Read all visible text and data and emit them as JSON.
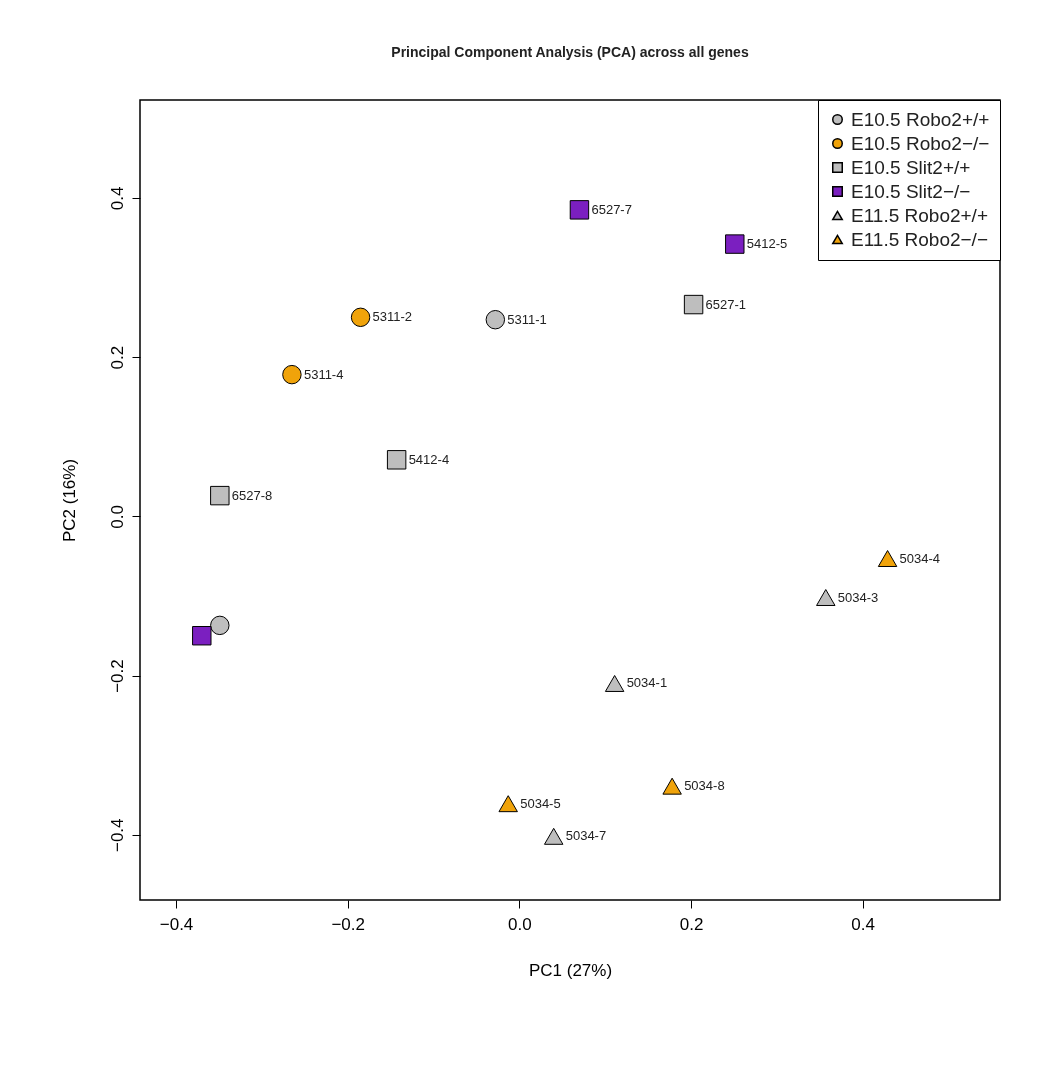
{
  "chart_data": {
    "type": "scatter",
    "title": "Principal Component Analysis (PCA) across all genes",
    "xlabel": "PC1 (27%)",
    "ylabel": "PC2 (16%)",
    "xlim": [
      -0.442,
      0.56
    ],
    "xticks": [
      {
        "value": -0.4,
        "label": "−0.4"
      },
      {
        "value": -0.2,
        "label": "−0.2"
      },
      {
        "value": 0,
        "label": "0.0"
      },
      {
        "value": 0.2,
        "label": "0.2"
      },
      {
        "value": 0.4,
        "label": "0.4"
      }
    ],
    "ylim": [
      -0.482,
      0.523
    ],
    "yticks": [
      {
        "value": -0.4,
        "label": "−0.4"
      },
      {
        "value": -0.2,
        "label": "−0.2"
      },
      {
        "value": 0,
        "label": "0.0"
      },
      {
        "value": 0.2,
        "label": "0.2"
      },
      {
        "value": 0.4,
        "label": "0.4"
      }
    ],
    "grid": false,
    "legend": "top right",
    "series": [
      {
        "name": "E10.5 Robo2+/+",
        "color": "#bebebe",
        "marker": "circle",
        "x": [
          -0.028,
          -0.349
        ],
        "values": [
          0.247,
          -0.137
        ]
      },
      {
        "name": "E10.5 Robo2−/−",
        "color": "#f0a30a",
        "marker": "circle",
        "x": [
          -0.185,
          -0.265
        ],
        "values": [
          0.25,
          0.178
        ]
      },
      {
        "name": "E10.5 Slit2+/+",
        "color": "#bebebe",
        "marker": "square",
        "x": [
          0.203,
          -0.143,
          -0.349
        ],
        "values": [
          0.266,
          0.071,
          0.026
        ]
      },
      {
        "name": "E10.5 Slit2−/−",
        "color": "#7b1fc0",
        "marker": "square",
        "x": [
          0.07,
          0.251,
          -0.37
        ],
        "values": [
          0.385,
          0.342,
          -0.15
        ]
      },
      {
        "name": "E11.5 Robo2+/+",
        "color": "#bebebe",
        "marker": "triangle",
        "x": [
          0.357,
          0.111,
          0.04
        ],
        "values": [
          -0.102,
          -0.21,
          -0.402
        ]
      },
      {
        "name": "E11.5 Robo2−/−",
        "color": "#f0a30a",
        "marker": "triangle",
        "x": [
          0.429,
          -0.013,
          0.178
        ],
        "values": [
          -0.053,
          -0.361,
          -0.339
        ]
      }
    ],
    "annotations": [
      {
        "text": "5311-1",
        "x": -0.028,
        "y": 0.247
      },
      {
        "text": "5311-2",
        "x": -0.185,
        "y": 0.25
      },
      {
        "text": "5311-4",
        "x": -0.265,
        "y": 0.178
      },
      {
        "text": "6527-1",
        "x": 0.203,
        "y": 0.266
      },
      {
        "text": "5412-4",
        "x": -0.143,
        "y": 0.071
      },
      {
        "text": "6527-8",
        "x": -0.349,
        "y": 0.026
      },
      {
        "text": "6527-7",
        "x": 0.07,
        "y": 0.385
      },
      {
        "text": "5412-5",
        "x": 0.251,
        "y": 0.342
      },
      {
        "text": "5034-3",
        "x": 0.357,
        "y": -0.102
      },
      {
        "text": "5034-1",
        "x": 0.111,
        "y": -0.21
      },
      {
        "text": "5034-7",
        "x": 0.04,
        "y": -0.402
      },
      {
        "text": "5034-4",
        "x": 0.429,
        "y": -0.053
      },
      {
        "text": "5034-5",
        "x": -0.013,
        "y": -0.361
      },
      {
        "text": "5034-8",
        "x": 0.178,
        "y": -0.339
      }
    ]
  }
}
